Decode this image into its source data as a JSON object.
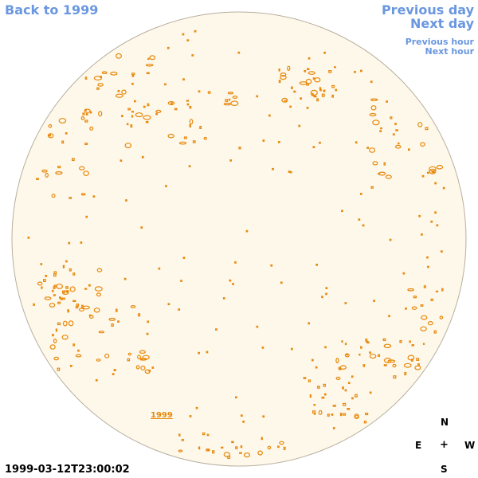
{
  "nav": {
    "back_label": "Back to 1999",
    "prev_day_label": "Previous day",
    "next_day_label": "Next day",
    "prev_hour_label": "Previous hour",
    "next_hour_label": "Next hour"
  },
  "timestamp": "1999-03-12T23:00:02",
  "compass": {
    "n": "N",
    "e": "E",
    "center": "+",
    "w": "W",
    "s": "S"
  },
  "disk": {
    "fill_color": "#fdf8ea",
    "edge_color": "#b8b0a0",
    "feature_color": "#e8870a"
  },
  "region_label": "1999",
  "colors": {
    "link": "#6a97e0",
    "text": "#000000"
  }
}
